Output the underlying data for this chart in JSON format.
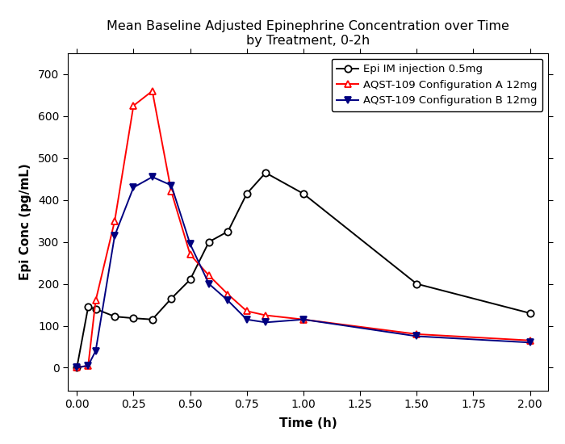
{
  "title": "Mean Baseline Adjusted Epinephrine Concentration over Time\nby Treatment, 0-2h",
  "xlabel": "Time (h)",
  "ylabel": "Epi Conc (pg/mL)",
  "xlim": [
    -0.04,
    2.08
  ],
  "ylim": [
    -55,
    750
  ],
  "xticks": [
    0.0,
    0.25,
    0.5,
    0.75,
    1.0,
    1.25,
    1.5,
    1.75,
    2.0
  ],
  "yticks": [
    0,
    100,
    200,
    300,
    400,
    500,
    600,
    700
  ],
  "series": [
    {
      "label": "Epi IM injection 0.5mg",
      "color": "black",
      "marker": "o",
      "marker_fill": "white",
      "marker_edge": "black",
      "x": [
        0.0,
        0.05,
        0.083,
        0.167,
        0.25,
        0.333,
        0.417,
        0.5,
        0.583,
        0.667,
        0.75,
        0.833,
        1.0,
        1.5,
        2.0
      ],
      "y": [
        0,
        145,
        140,
        122,
        118,
        115,
        165,
        210,
        300,
        325,
        415,
        465,
        415,
        200,
        130
      ]
    },
    {
      "label": "AQST-109 Configuration A 12mg",
      "color": "red",
      "marker": "^",
      "marker_fill": "white",
      "marker_edge": "red",
      "x": [
        0.0,
        0.05,
        0.083,
        0.167,
        0.25,
        0.333,
        0.417,
        0.5,
        0.583,
        0.667,
        0.75,
        0.833,
        1.0,
        1.5,
        2.0
      ],
      "y": [
        0,
        5,
        160,
        350,
        625,
        660,
        420,
        270,
        220,
        175,
        135,
        125,
        115,
        80,
        65
      ]
    },
    {
      "label": "AQST-109 Configuration B 12mg",
      "color": "navy",
      "marker": "v",
      "marker_fill": "navy",
      "marker_edge": "navy",
      "x": [
        0.0,
        0.05,
        0.083,
        0.167,
        0.25,
        0.333,
        0.417,
        0.5,
        0.583,
        0.667,
        0.75,
        0.833,
        1.0,
        1.5,
        2.0
      ],
      "y": [
        0,
        5,
        40,
        315,
        430,
        455,
        435,
        295,
        200,
        160,
        115,
        108,
        115,
        75,
        60
      ]
    }
  ],
  "legend_loc": "upper right",
  "bg_color": "white",
  "plot_bg_color": "white",
  "title_fontsize": 11.5,
  "axis_label_fontsize": 11,
  "tick_fontsize": 10,
  "legend_fontsize": 9.5,
  "markersize": 6,
  "linewidth": 1.4
}
